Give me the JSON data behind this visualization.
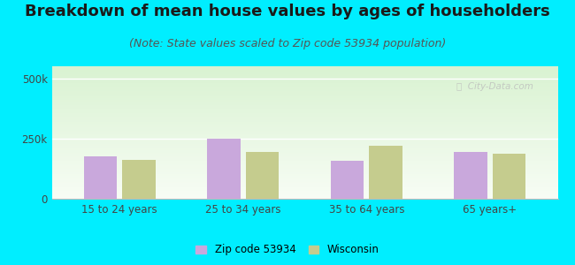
{
  "title": "Breakdown of mean house values by ages of householders",
  "subtitle": "(Note: State values scaled to Zip code 53934 population)",
  "categories": [
    "15 to 24 years",
    "25 to 34 years",
    "35 to 64 years",
    "65 years+"
  ],
  "zip_values": [
    175000,
    248000,
    158000,
    193000
  ],
  "wi_values": [
    163000,
    195000,
    220000,
    188000
  ],
  "zip_color": "#c9a8dc",
  "wi_color": "#c5cc8e",
  "ylim": [
    0,
    550000
  ],
  "ytick_labels": [
    "0",
    "250k",
    "500k"
  ],
  "ytick_vals": [
    0,
    250000,
    500000
  ],
  "legend_zip": "Zip code 53934",
  "legend_wi": "Wisconsin",
  "bg_outer": "#00eeff",
  "title_fontsize": 13,
  "subtitle_fontsize": 9,
  "bar_width": 0.27,
  "bar_gap": 0.04
}
